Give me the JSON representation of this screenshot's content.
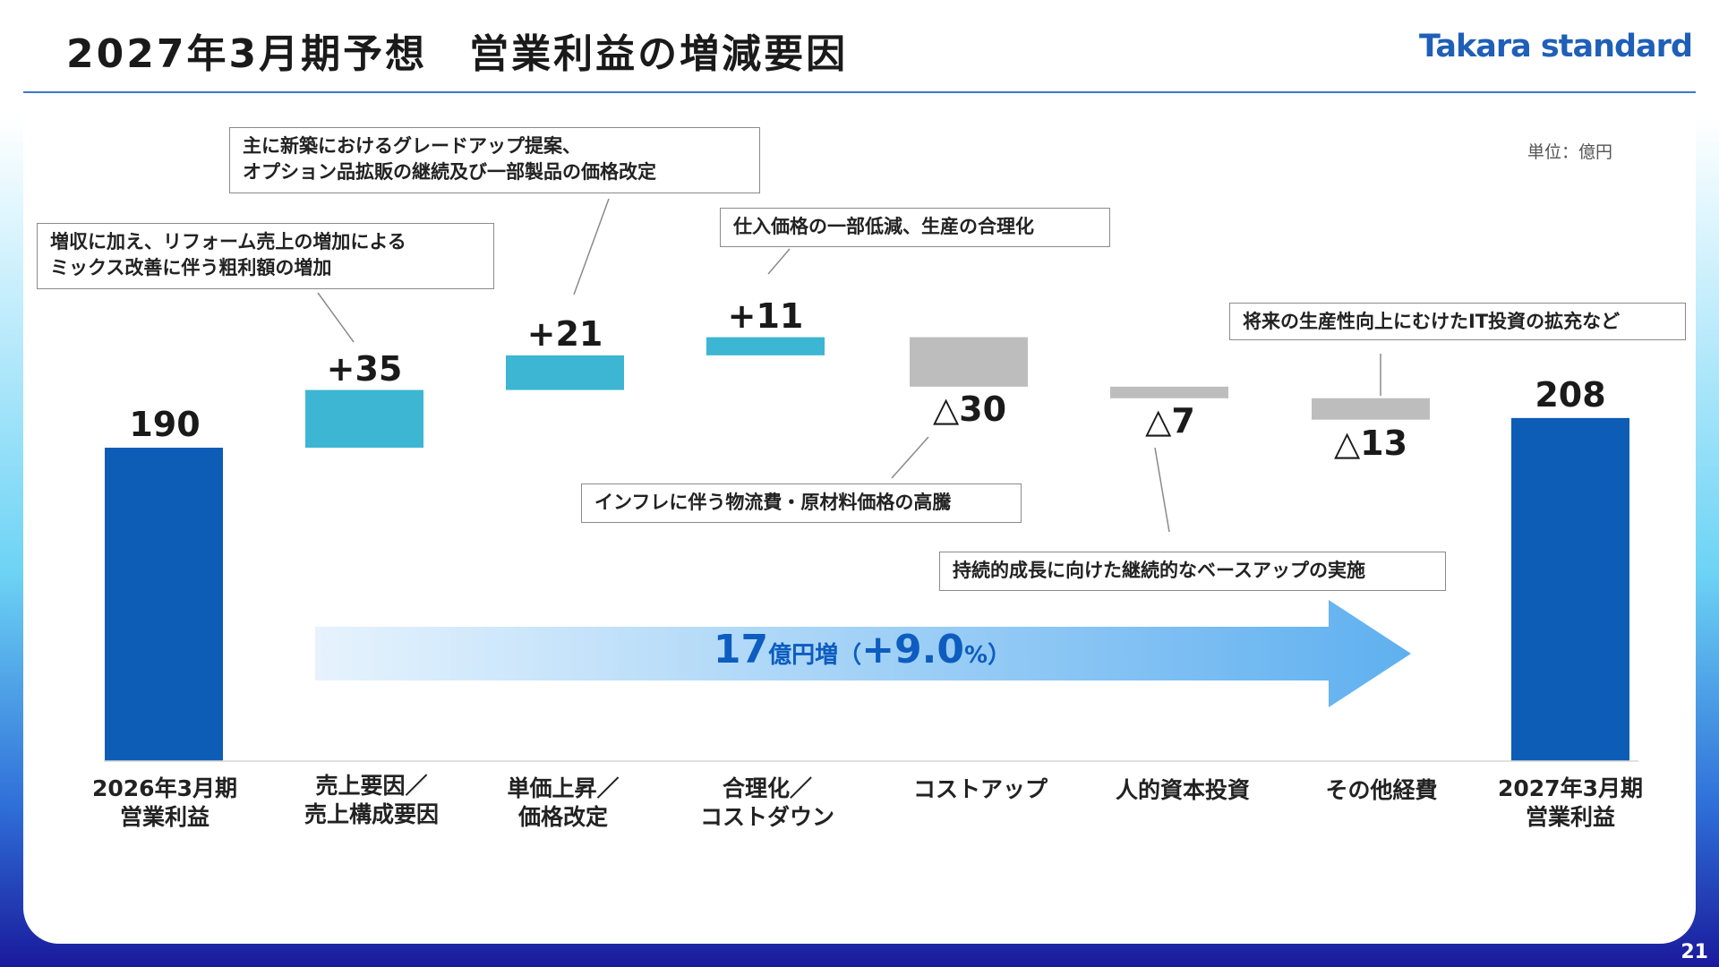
{
  "header": {
    "title": "2027年3月期予想　営業利益の増減要因",
    "logo": "Takara standard",
    "unit": "単位：億円",
    "page_number": "21"
  },
  "colors": {
    "total_bar": "#0d5cb6",
    "increase_bar": "#3cb6d3",
    "decrease_bar": "#bdbdbd",
    "arrow_start": "#e6f3fd",
    "arrow_end": "#5fb0f0",
    "arrow_text": "#0d5cbf"
  },
  "chart_data": {
    "type": "bar",
    "subtype": "waterfall",
    "categories": [
      "2026年3月期\n営業利益",
      "売上要因／\n売上構成要因",
      "単価上昇／\n価格改定",
      "合理化／\nコストダウン",
      "コストアップ",
      "人的資本投資",
      "その他経費",
      "2027年3月期\n営業利益"
    ],
    "values": [
      190,
      35,
      21,
      11,
      -30,
      -7,
      -13,
      208
    ],
    "kinds": [
      "total",
      "increase",
      "increase",
      "increase",
      "decrease",
      "decrease",
      "decrease",
      "total"
    ],
    "value_labels": [
      "190",
      "+35",
      "+21",
      "+11",
      "△30",
      "△7",
      "△13",
      "208"
    ],
    "unit": "単位：億円"
  },
  "summary_arrow": {
    "number": "17",
    "unit_text": "億円増",
    "open_paren": "（",
    "pct_number": "+9.0",
    "pct_sign": "%",
    "close_paren": "）"
  },
  "callouts": [
    "増収に加え、リフォーム売上の増加による\nミックス改善に伴う粗利額の増加",
    "主に新築におけるグレードアップ提案、\nオプション品拡販の継続及び一部製品の価格改定",
    "仕入価格の一部低減、生産の合理化",
    "インフレに伴う物流費・原材料価格の高騰",
    "持続的成長に向けた継続的なベースアップの実施",
    "将来の生産性向上にむけたIT投資の拡充など"
  ]
}
